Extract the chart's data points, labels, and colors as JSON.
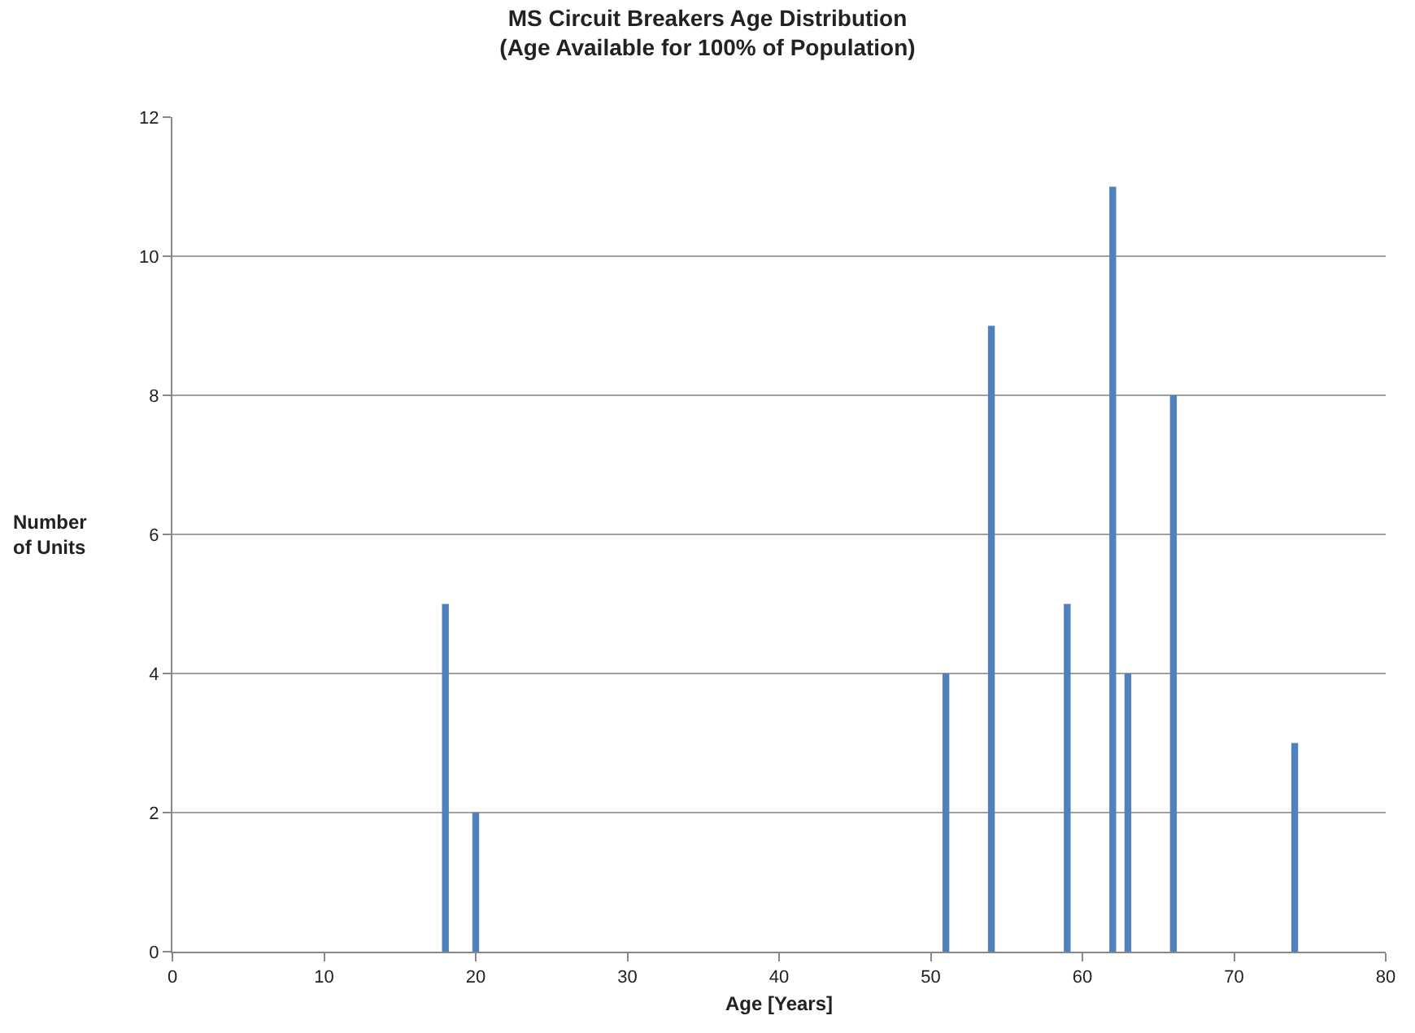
{
  "chart_data": {
    "type": "bar",
    "title": "MS Circuit Breakers Age Distribution\n(Age Available for 100% of Population)",
    "xlabel": "Age [Years]",
    "ylabel": "Number\nof Units",
    "x": [
      18,
      20,
      51,
      54,
      59,
      62,
      63,
      66,
      74
    ],
    "series": [
      {
        "color": "#4f81bd",
        "values": [
          5,
          2,
          4,
          9,
          5,
          11,
          4,
          8,
          3
        ]
      }
    ],
    "xlim": [
      0,
      80
    ],
    "xticks": [
      0,
      10,
      20,
      30,
      40,
      50,
      60,
      70,
      80
    ],
    "ylim": [
      0,
      12
    ],
    "yticks": [
      0,
      2,
      4,
      6,
      8,
      10,
      12
    ],
    "grid": "y"
  }
}
